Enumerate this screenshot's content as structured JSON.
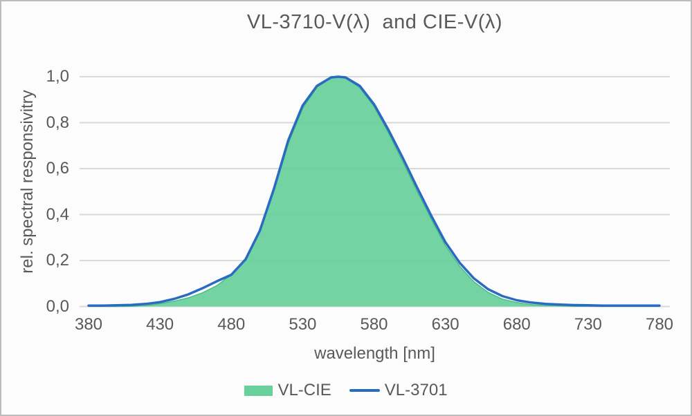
{
  "chart_data": {
    "type": "area",
    "title": "VL-3710-V(λ)  and CIE-V(λ)",
    "xlabel": "wavelength [nm]",
    "ylabel": "rel. spectral responsivitry",
    "xlim": [
      380,
      780
    ],
    "ylim": [
      0.0,
      1.0
    ],
    "x_ticks": [
      380,
      430,
      480,
      530,
      580,
      630,
      680,
      730,
      780
    ],
    "y_ticks": [
      {
        "value": 1.0,
        "label": "1,0"
      },
      {
        "value": 0.8,
        "label": "0,8"
      },
      {
        "value": 0.6,
        "label": "0,6"
      },
      {
        "value": 0.4,
        "label": "0,4"
      },
      {
        "value": 0.2,
        "label": "0,2"
      },
      {
        "value": 0.0,
        "label": "0,0"
      }
    ],
    "grid": "horizontal",
    "legend_position": "bottom",
    "x": [
      380,
      390,
      400,
      410,
      420,
      430,
      440,
      450,
      460,
      470,
      480,
      490,
      500,
      510,
      520,
      530,
      540,
      550,
      555,
      560,
      570,
      580,
      590,
      600,
      610,
      620,
      630,
      640,
      650,
      660,
      670,
      680,
      690,
      700,
      710,
      720,
      730,
      740,
      750,
      760,
      770,
      780
    ],
    "series": [
      {
        "name": "VL-CIE",
        "type": "area",
        "color": "#68d09b",
        "edge_color": "#4fbc85",
        "values": [
          0.0,
          0.0,
          0.0,
          0.001,
          0.004,
          0.012,
          0.023,
          0.038,
          0.06,
          0.091,
          0.139,
          0.208,
          0.323,
          0.503,
          0.71,
          0.862,
          0.954,
          0.995,
          1.0,
          0.995,
          0.952,
          0.87,
          0.757,
          0.631,
          0.503,
          0.381,
          0.265,
          0.175,
          0.107,
          0.061,
          0.032,
          0.017,
          0.008,
          0.004,
          0.002,
          0.001,
          0.001,
          0.0,
          0.0,
          0.0,
          0.0,
          0.0
        ]
      },
      {
        "name": "VL-3701",
        "type": "line",
        "color": "#2a6bc2",
        "values": [
          0.004,
          0.004,
          0.005,
          0.007,
          0.011,
          0.019,
          0.033,
          0.053,
          0.08,
          0.11,
          0.138,
          0.205,
          0.33,
          0.515,
          0.725,
          0.875,
          0.96,
          0.997,
          1.0,
          0.997,
          0.96,
          0.88,
          0.77,
          0.648,
          0.52,
          0.396,
          0.28,
          0.19,
          0.122,
          0.075,
          0.045,
          0.027,
          0.017,
          0.011,
          0.008,
          0.006,
          0.005,
          0.004,
          0.004,
          0.004,
          0.004,
          0.004
        ]
      }
    ]
  },
  "colors": {
    "grid": "#d9d9d9",
    "text": "#595959",
    "border": "#bcbcbc",
    "background": "#fcfcfc",
    "area_fill": "#68d09b",
    "area_edge": "#4fbc85",
    "line_blue": "#2a6bc2"
  }
}
